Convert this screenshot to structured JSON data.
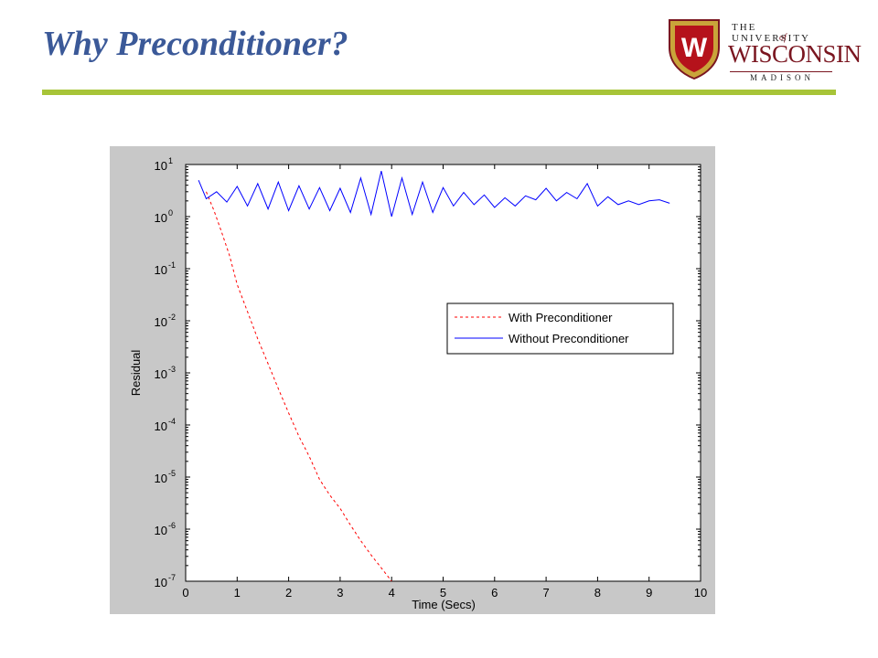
{
  "slide": {
    "title": "Why Preconditioner?"
  },
  "logo": {
    "line1": "THE UNIVERSITY",
    "line_of": "of",
    "line2": "WISCONSIN",
    "line3": "MADISON",
    "crest_letter": "W",
    "colors": {
      "crest": "#b5121b",
      "gold": "#c9a43a"
    }
  },
  "colors": {
    "title": "#3b5998",
    "rule": "#a7c438",
    "figure_bg": "#c8c8c8",
    "with_series": "#ff0000",
    "without_series": "#0000ff"
  },
  "chart_data": {
    "type": "line",
    "title": "",
    "xlabel": "Time (Secs)",
    "ylabel": "Residual",
    "xlim": [
      0,
      10
    ],
    "ylim_exponent": [
      -7,
      1
    ],
    "yscale": "log",
    "grid": false,
    "legend_position": "center-right",
    "x_ticks": [
      "0",
      "1",
      "2",
      "3",
      "4",
      "5",
      "6",
      "7",
      "8",
      "9",
      "10"
    ],
    "y_ticks": [
      {
        "base": "10",
        "exp": "-7"
      },
      {
        "base": "10",
        "exp": "-6"
      },
      {
        "base": "10",
        "exp": "-5"
      },
      {
        "base": "10",
        "exp": "-4"
      },
      {
        "base": "10",
        "exp": "-3"
      },
      {
        "base": "10",
        "exp": "-2"
      },
      {
        "base": "10",
        "exp": "-1"
      },
      {
        "base": "10",
        "exp": "0"
      },
      {
        "base": "10",
        "exp": "1"
      }
    ],
    "series": [
      {
        "name": "With Preconditioner",
        "style": "dashed",
        "color": "#ff0000",
        "x": [
          0.4,
          0.55,
          0.7,
          0.85,
          1.0,
          1.2,
          1.4,
          1.6,
          1.8,
          2.0,
          2.2,
          2.4,
          2.6,
          2.8,
          3.0,
          3.2,
          3.4,
          3.6,
          3.8,
          4.0
        ],
        "y": [
          3.0,
          1.3,
          0.5,
          0.18,
          0.05,
          0.015,
          0.0045,
          0.0015,
          0.0005,
          0.00017,
          6e-05,
          2.5e-05,
          9e-06,
          4.5e-06,
          2.5e-06,
          1.2e-06,
          6e-07,
          3.2e-07,
          1.8e-07,
          1e-07
        ]
      },
      {
        "name": "Without Preconditioner",
        "style": "solid",
        "color": "#0000ff",
        "x": [
          0.25,
          0.4,
          0.6,
          0.8,
          1.0,
          1.2,
          1.4,
          1.6,
          1.8,
          2.0,
          2.2,
          2.4,
          2.6,
          2.8,
          3.0,
          3.2,
          3.4,
          3.6,
          3.8,
          4.0,
          4.2,
          4.4,
          4.6,
          4.8,
          5.0,
          5.2,
          5.4,
          5.6,
          5.8,
          6.0,
          6.2,
          6.4,
          6.6,
          6.8,
          7.0,
          7.2,
          7.4,
          7.6,
          7.8,
          8.0,
          8.2,
          8.4,
          8.6,
          8.8,
          9.0,
          9.2,
          9.4
        ],
        "y": [
          5.0,
          2.2,
          3.0,
          1.9,
          3.8,
          1.6,
          4.3,
          1.4,
          4.6,
          1.3,
          3.9,
          1.4,
          3.6,
          1.3,
          3.5,
          1.2,
          5.5,
          1.1,
          7.5,
          1.0,
          5.5,
          1.1,
          4.6,
          1.2,
          3.6,
          1.6,
          2.9,
          1.7,
          2.6,
          1.5,
          2.3,
          1.6,
          2.5,
          2.1,
          3.5,
          2.0,
          2.9,
          2.2,
          4.3,
          1.6,
          2.4,
          1.7,
          2.0,
          1.7,
          2.0,
          2.1,
          1.8
        ]
      }
    ]
  }
}
